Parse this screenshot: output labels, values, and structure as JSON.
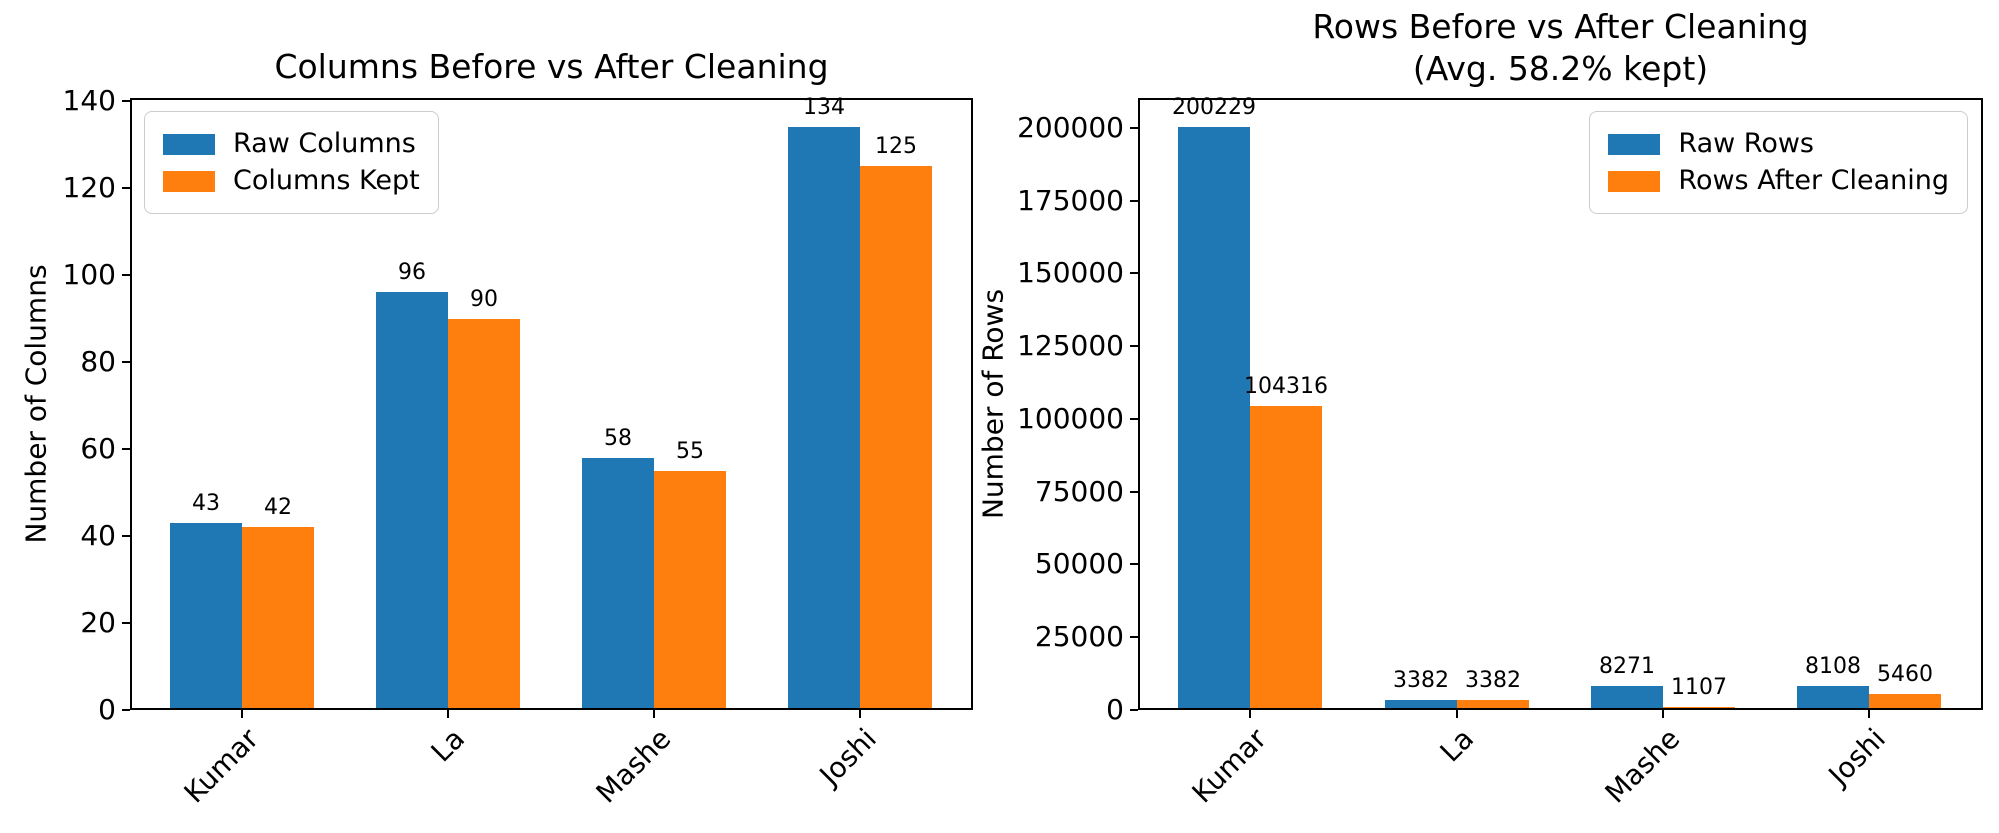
{
  "figure": {
    "background": "#ffffff",
    "text_color": "#000000",
    "spine_color": "#000000",
    "series_colors": {
      "before": "#1f77b4",
      "after": "#ff7f0e"
    }
  },
  "chart_data": [
    {
      "type": "bar",
      "title": "Columns Before vs After Cleaning",
      "ylabel": "Number of Columns",
      "xlabel": "",
      "categories": [
        "Kumar",
        "La",
        "Mashe",
        "Joshi"
      ],
      "series": [
        {
          "name": "Raw Columns",
          "color": "#1f77b4",
          "values": [
            43,
            96,
            58,
            134
          ]
        },
        {
          "name": "Columns Kept",
          "color": "#ff7f0e",
          "values": [
            42,
            90,
            55,
            125
          ]
        }
      ],
      "bar_value_labels": [
        "43",
        "96",
        "58",
        "134",
        "42",
        "90",
        "55",
        "125"
      ],
      "yticks": [
        0,
        20,
        40,
        60,
        80,
        100,
        120,
        140
      ],
      "ylim": [
        0,
        140.7
      ],
      "legend_position": "upper left",
      "grid": false,
      "xtick_rotation_deg": 45
    },
    {
      "type": "bar",
      "title": "Rows Before vs After Cleaning",
      "subtitle": "(Avg. 58.2% kept)",
      "ylabel": "Number of Rows",
      "xlabel": "",
      "categories": [
        "Kumar",
        "La",
        "Mashe",
        "Joshi"
      ],
      "series": [
        {
          "name": "Raw Rows",
          "color": "#1f77b4",
          "values": [
            200229,
            3382,
            8271,
            8108
          ]
        },
        {
          "name": "Rows After Cleaning",
          "color": "#ff7f0e",
          "values": [
            104316,
            3382,
            1107,
            5460
          ]
        }
      ],
      "bar_value_labels": [
        "200229",
        "3382",
        "8271",
        "8108",
        "104316",
        "3382",
        "1107",
        "5460"
      ],
      "yticks": [
        0,
        25000,
        50000,
        75000,
        100000,
        125000,
        150000,
        175000,
        200000
      ],
      "ylim": [
        0,
        210240
      ],
      "legend_position": "upper right",
      "grid": false,
      "xtick_rotation_deg": 45
    }
  ]
}
